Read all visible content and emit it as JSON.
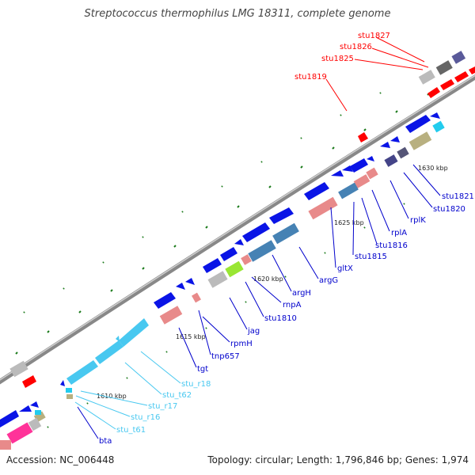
{
  "title": "Streptococcus thermophilus LMG 18311, complete genome",
  "footer": {
    "accession": "Accession: NC_006448",
    "summary": "Topology: circular; Length: 1,796,846 bp; Genes: 1,974"
  },
  "colors": {
    "cds": "#0a14e6",
    "trna": "#48c8f0",
    "rrna": "#888888",
    "highlight": "#ff0000",
    "pink": "#e88a8a",
    "steel": "#4682b4",
    "navy": "#5a5a9a",
    "olive": "#b8b080",
    "lime": "#99e633",
    "magenta": "#ff3399",
    "backbone": "#888888",
    "tick": "#1a7a1a"
  },
  "kbp_ticks": [
    "1610 kbp",
    "1615 kbp",
    "1620 kbp",
    "1625 kbp",
    "1630 kbp"
  ],
  "gene_labels": {
    "stu1827": "stu1827",
    "stu1826": "stu1826",
    "stu1825": "stu1825",
    "stu1819": "stu1819",
    "stu1821": "stu1821",
    "stu1820": "stu1820",
    "rplK": "rplK",
    "rplA": "rplA",
    "stu1816": "stu1816",
    "stu1815": "stu1815",
    "gltX": "gltX",
    "argG": "argG",
    "argH": "argH",
    "rnpA": "rnpA",
    "stu1810": "stu1810",
    "jag": "jag",
    "rpmH": "rpmH",
    "tnp657": "tnp657",
    "tgt": "tgt",
    "stu_r18": "stu_r18",
    "stu_t62": "stu_t62",
    "stu_r17": "stu_r17",
    "stu_r16": "stu_r16",
    "stu_t61": "stu_t61",
    "bta": "bta"
  }
}
